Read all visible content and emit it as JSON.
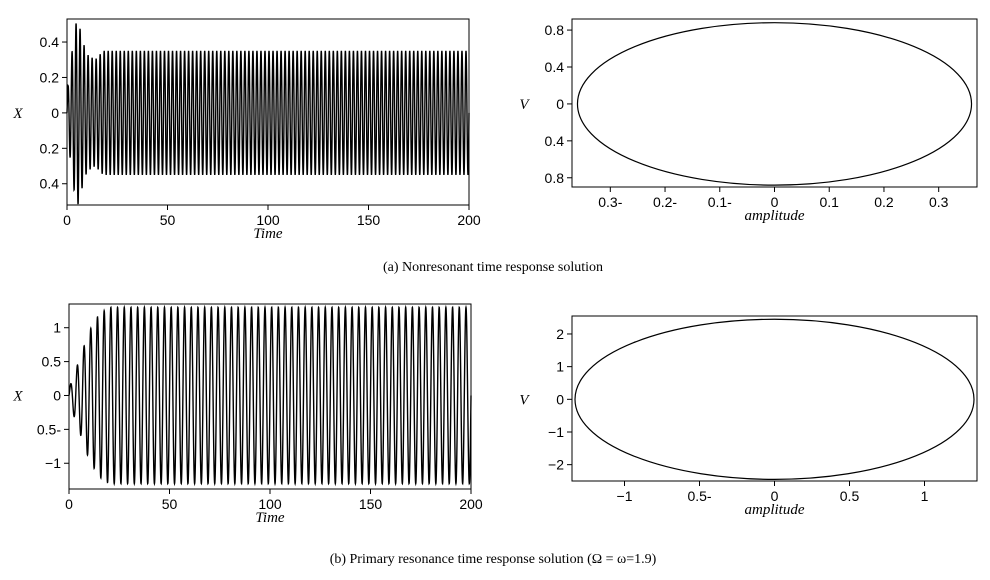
{
  "figure": {
    "caption_a": "(a) Nonresonant time response solution",
    "caption_b": "(b) Primary resonance time response solution (Ω = ω=1.9)"
  },
  "chart_data": [
    {
      "id": "a-time",
      "type": "line",
      "xlabel": "Time",
      "ylabel": "X",
      "xlim": [
        0,
        200
      ],
      "ylim": [
        -0.52,
        0.53
      ],
      "xticks": [
        0,
        50,
        100,
        150,
        200
      ],
      "xtick_labels": [
        "0",
        "50",
        "100",
        "150",
        "200"
      ],
      "yticks": [
        0.4,
        0.2,
        0,
        -0.2,
        -0.4
      ],
      "ytick_labels": [
        "0.4",
        "0.2",
        "0",
        "0.2",
        "0.4"
      ],
      "signal": {
        "form": "oscillation",
        "steady_amplitude": 0.35,
        "steady_cycles": 100,
        "transient": [
          {
            "t": 0,
            "amp": 0.1
          },
          {
            "t": 2,
            "amp": 0.3
          },
          {
            "t": 4,
            "amp": 0.48
          },
          {
            "t": 5,
            "amp": 0.53
          },
          {
            "t": 6,
            "amp": 0.5
          },
          {
            "t": 8,
            "amp": 0.4
          },
          {
            "t": 10,
            "amp": 0.33
          },
          {
            "t": 14,
            "amp": 0.3
          },
          {
            "t": 18,
            "amp": 0.35
          },
          {
            "t": 200,
            "amp": 0.35
          }
        ],
        "color": "#000000"
      }
    },
    {
      "id": "a-phase",
      "type": "line",
      "xlabel": "amplitude",
      "ylabel": "V",
      "xlim": [
        -0.37,
        0.37
      ],
      "ylim": [
        -0.9,
        0.92
      ],
      "xticks": [
        -0.3,
        -0.2,
        -0.1,
        0,
        0.1,
        0.2,
        0.3
      ],
      "xtick_labels": [
        "0.3-",
        "0.2-",
        "0.1-",
        "0",
        "0.1",
        "0.2",
        "0.3"
      ],
      "yticks": [
        0.8,
        0.4,
        0,
        -0.4,
        -0.8
      ],
      "ytick_labels": [
        "0.8",
        "0.4",
        "0",
        "0.4",
        "0.8"
      ],
      "series": [
        {
          "shape": "ellipse",
          "x_amplitude": 0.36,
          "y_amplitude": 0.88,
          "color": "#000000"
        }
      ]
    },
    {
      "id": "b-time",
      "type": "line",
      "xlabel": "Time",
      "ylabel": "X",
      "xlim": [
        0,
        200
      ],
      "ylim": [
        -1.38,
        1.35
      ],
      "xticks": [
        0,
        50,
        100,
        150,
        200
      ],
      "xtick_labels": [
        "0",
        "50",
        "100",
        "150",
        "200"
      ],
      "yticks": [
        1,
        0.5,
        0,
        -0.5,
        -1
      ],
      "ytick_labels": [
        "1",
        "0.5",
        "0",
        "0.5-",
        "−1"
      ],
      "signal": {
        "form": "oscillation",
        "steady_amplitude": 1.3,
        "steady_cycles": 60,
        "transient": [
          {
            "t": 0,
            "amp": 0.1
          },
          {
            "t": 3,
            "amp": 0.35
          },
          {
            "t": 6,
            "amp": 0.6
          },
          {
            "t": 10,
            "amp": 0.95
          },
          {
            "t": 15,
            "amp": 1.2
          },
          {
            "t": 20,
            "amp": 1.3
          },
          {
            "t": 200,
            "amp": 1.3
          }
        ],
        "color": "#000000"
      }
    },
    {
      "id": "b-phase",
      "type": "line",
      "xlabel": "amplitude",
      "ylabel": "V",
      "xlim": [
        -1.35,
        1.35
      ],
      "ylim": [
        -2.5,
        2.55
      ],
      "xticks": [
        -1,
        -0.5,
        0,
        0.5,
        1
      ],
      "xtick_labels": [
        "−1",
        "0.5-",
        "0",
        "0.5",
        "1"
      ],
      "yticks": [
        2,
        1,
        0,
        -1,
        -2
      ],
      "ytick_labels": [
        "2",
        "1",
        "0",
        "−1",
        "−2"
      ],
      "series": [
        {
          "shape": "ellipse",
          "x_amplitude": 1.33,
          "y_amplitude": 2.45,
          "color": "#000000"
        }
      ]
    }
  ]
}
